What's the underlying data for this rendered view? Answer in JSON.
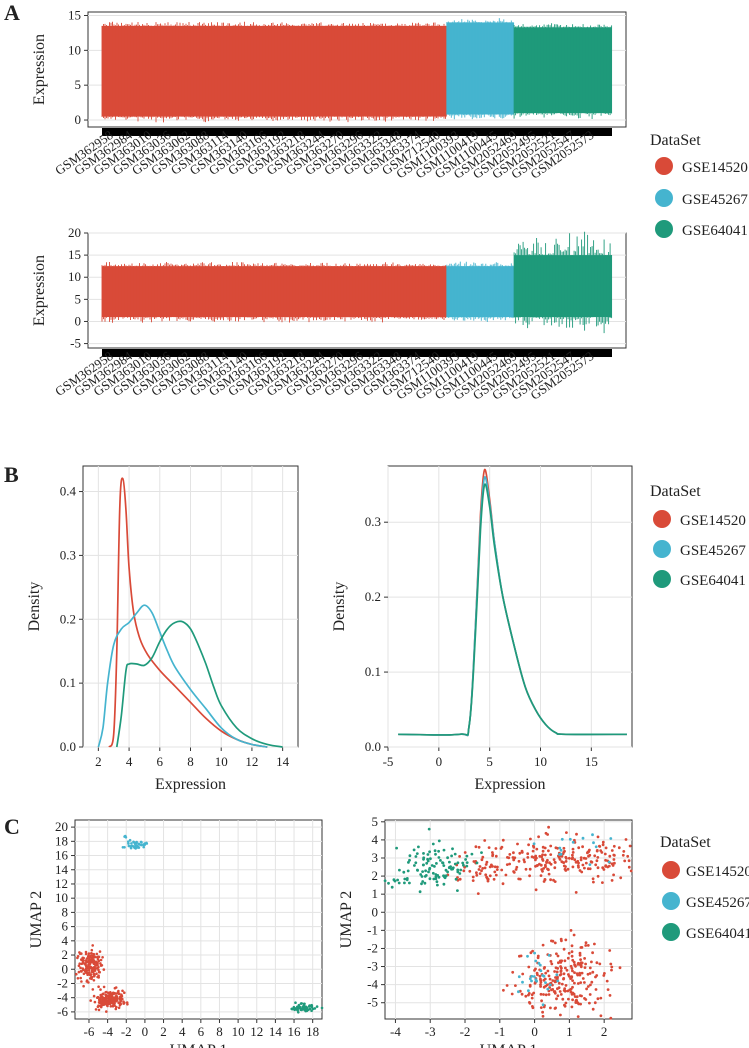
{
  "panels": {
    "a": "A",
    "b": "B",
    "c": "C"
  },
  "legend": {
    "title": "DataSet",
    "items": [
      {
        "label": "GSE14520",
        "color": "#d94a38"
      },
      {
        "label": "GSE45267",
        "color": "#45b4cf"
      },
      {
        "label": "GSE64041",
        "color": "#1f9a7b"
      }
    ]
  },
  "chart_data": [
    {
      "id": "a1",
      "type": "box",
      "title": "",
      "xlabel": "",
      "ylabel": "Expression",
      "ylim": [
        -1,
        15.5
      ],
      "yticks": [
        0,
        5,
        10,
        15
      ],
      "categories": [
        "GSM362958",
        "GSM362984",
        "GSM363010",
        "GSM363036",
        "GSM363062",
        "GSM363088",
        "GSM363114",
        "GSM363140",
        "GSM363166",
        "GSM363192",
        "GSM363218",
        "GSM363244",
        "GSM363270",
        "GSM363296",
        "GSM363322",
        "GSM363348",
        "GSM363374",
        "GSM712540",
        "GSM1100393",
        "GSM1100419",
        "GSM1100445",
        "GSM2052469",
        "GSM2052495",
        "GSM2052521",
        "GSM2052547",
        "GSM2052573"
      ],
      "series": [
        {
          "name": "GSE14520",
          "samples": 445,
          "low": 0.5,
          "high": 13.5
        },
        {
          "name": "GSE45267",
          "samples": 87,
          "low": 0.8,
          "high": 14.0
        },
        {
          "name": "GSE64041",
          "samples": 125,
          "low": 1.0,
          "high": 13.3
        }
      ]
    },
    {
      "id": "a2",
      "type": "box",
      "title": "",
      "xlabel": "",
      "ylabel": "Expression",
      "ylim": [
        -6,
        20
      ],
      "yticks": [
        -5,
        0,
        5,
        10,
        15,
        20
      ],
      "categories": [
        "GSM362958",
        "GSM362984",
        "GSM363010",
        "GSM363036",
        "GSM363062",
        "GSM363088",
        "GSM363114",
        "GSM363140",
        "GSM363166",
        "GSM363192",
        "GSM363218",
        "GSM363244",
        "GSM363270",
        "GSM363296",
        "GSM363322",
        "GSM363348",
        "GSM363374",
        "GSM712540",
        "GSM1100393",
        "GSM1100419",
        "GSM1100445",
        "GSM2052469",
        "GSM2052495",
        "GSM2052521",
        "GSM2052547",
        "GSM2052573"
      ],
      "series": [
        {
          "name": "GSE14520",
          "low": 1.0,
          "high": 12.5
        },
        {
          "name": "GSE45267",
          "low": 1.0,
          "high": 12.5
        },
        {
          "name": "GSE64041",
          "low": 1.0,
          "high": 15.0
        }
      ]
    },
    {
      "id": "b1",
      "type": "line",
      "title": "",
      "xlabel": "Expression",
      "ylabel": "Density",
      "xlim": [
        1,
        15
      ],
      "ylim": [
        0,
        0.44
      ],
      "xticks": [
        2,
        4,
        6,
        8,
        10,
        12,
        14
      ],
      "yticks": [
        0.0,
        0.1,
        0.2,
        0.3,
        0.4
      ],
      "series": [
        {
          "name": "GSE14520",
          "x": [
            2.7,
            3.0,
            3.2,
            3.4,
            3.6,
            3.8,
            4.0,
            4.3,
            4.7,
            5.2,
            6.0,
            7.0,
            8.0,
            9.0,
            10.0,
            11.0,
            12.0,
            13.0
          ],
          "y": [
            0,
            0.02,
            0.15,
            0.38,
            0.42,
            0.37,
            0.28,
            0.21,
            0.17,
            0.145,
            0.12,
            0.095,
            0.07,
            0.045,
            0.025,
            0.012,
            0.004,
            0
          ]
        },
        {
          "name": "GSE45267",
          "x": [
            2.0,
            2.3,
            2.6,
            3.0,
            3.5,
            4.0,
            4.5,
            5.0,
            5.5,
            6.0,
            6.5,
            7.0,
            8.0,
            9.0,
            10.0,
            11.0,
            12.0,
            13.0
          ],
          "y": [
            0,
            0.03,
            0.1,
            0.16,
            0.185,
            0.195,
            0.21,
            0.222,
            0.21,
            0.18,
            0.15,
            0.125,
            0.09,
            0.06,
            0.03,
            0.012,
            0.004,
            0
          ]
        },
        {
          "name": "GSE64041",
          "x": [
            3.2,
            3.5,
            3.8,
            4.0,
            4.5,
            5.0,
            5.5,
            6.0,
            6.5,
            7.0,
            7.5,
            8.0,
            8.5,
            9.0,
            9.5,
            10.0,
            11.0,
            12.0,
            13.0,
            14.0
          ],
          "y": [
            0,
            0.05,
            0.12,
            0.13,
            0.13,
            0.128,
            0.14,
            0.165,
            0.185,
            0.195,
            0.196,
            0.185,
            0.16,
            0.13,
            0.095,
            0.065,
            0.03,
            0.013,
            0.004,
            0
          ]
        }
      ]
    },
    {
      "id": "b2",
      "type": "line",
      "title": "",
      "xlabel": "Expression",
      "ylabel": "Density",
      "xlim": [
        -5,
        19
      ],
      "ylim": [
        0,
        0.375
      ],
      "xticks": [
        -5,
        0,
        5,
        10,
        15
      ],
      "yticks": [
        0.0,
        0.1,
        0.2,
        0.3
      ],
      "series": [
        {
          "name": "GSE14520",
          "x": [
            -4,
            2,
            3,
            3.6,
            4.1,
            4.5,
            5.0,
            5.5,
            6.3,
            7.5,
            8.5,
            9.5,
            10.5,
            11.5,
            12.5,
            18.5
          ],
          "y": [
            0.017,
            0.017,
            0.03,
            0.16,
            0.31,
            0.37,
            0.33,
            0.27,
            0.2,
            0.13,
            0.08,
            0.05,
            0.03,
            0.019,
            0.017,
            0.017
          ]
        },
        {
          "name": "GSE45267",
          "x": [
            -4,
            2,
            3,
            3.6,
            4.1,
            4.5,
            5.0,
            5.5,
            6.3,
            7.5,
            8.5,
            9.5,
            10.5,
            11.5,
            12.5,
            18.5
          ],
          "y": [
            0.017,
            0.017,
            0.03,
            0.16,
            0.3,
            0.36,
            0.325,
            0.27,
            0.2,
            0.13,
            0.08,
            0.05,
            0.03,
            0.019,
            0.017,
            0.017
          ]
        },
        {
          "name": "GSE64041",
          "x": [
            -4,
            2,
            3,
            3.6,
            4.1,
            4.5,
            5.0,
            5.5,
            6.3,
            7.5,
            8.5,
            9.5,
            10.5,
            11.5,
            12.5,
            18.5
          ],
          "y": [
            0.017,
            0.017,
            0.03,
            0.15,
            0.29,
            0.35,
            0.32,
            0.265,
            0.2,
            0.13,
            0.08,
            0.05,
            0.03,
            0.019,
            0.017,
            0.017
          ]
        }
      ]
    },
    {
      "id": "c1",
      "type": "scatter",
      "title": "",
      "xlabel": "UMAP 1",
      "ylabel": "UMAP 2",
      "xlim": [
        -7.5,
        19
      ],
      "ylim": [
        -7,
        21
      ],
      "xticks": [
        -6,
        -4,
        -2,
        0,
        2,
        4,
        6,
        8,
        10,
        12,
        14,
        16,
        18
      ],
      "yticks": [
        -6,
        -4,
        -2,
        0,
        2,
        4,
        6,
        8,
        10,
        12,
        14,
        16,
        18,
        20
      ],
      "series": [
        {
          "name": "GSE14520",
          "clusters": [
            {
              "cx": -5.9,
              "cy": 0.5,
              "sx": 0.6,
              "sy": 1.1,
              "n": 160
            },
            {
              "cx": -3.8,
              "cy": -4.3,
              "sx": 0.9,
              "sy": 0.6,
              "n": 180
            }
          ]
        },
        {
          "name": "GSE45267",
          "clusters": [
            {
              "cx": -0.9,
              "cy": 17.5,
              "sx": 0.5,
              "sy": 0.3,
              "n": 40
            },
            {
              "cx": -2.0,
              "cy": 18.6,
              "sx": 0.1,
              "sy": 0.1,
              "n": 3
            }
          ]
        },
        {
          "name": "GSE64041",
          "clusters": [
            {
              "cx": 17.1,
              "cy": -5.4,
              "sx": 0.7,
              "sy": 0.3,
              "n": 55
            }
          ]
        }
      ]
    },
    {
      "id": "c2",
      "type": "scatter",
      "title": "",
      "xlabel": "UMAP 1",
      "ylabel": "UMAP 2",
      "xlim": [
        -4.3,
        2.8
      ],
      "ylim": [
        -5.9,
        5.1
      ],
      "xticks": [
        -4,
        -3,
        -2,
        -1,
        0,
        1,
        2
      ],
      "yticks": [
        -5,
        -4,
        -3,
        -2,
        -1,
        0,
        1,
        2,
        3,
        4,
        5
      ],
      "series": [
        {
          "name": "GSE14520",
          "clusters": [
            {
              "cx": 0.8,
              "cy": 3.0,
              "sx": 1.2,
              "sy": 0.6,
              "n": 230
            },
            {
              "cx": 0.9,
              "cy": -3.7,
              "sx": 0.7,
              "sy": 1.0,
              "n": 250
            },
            {
              "cx": -1.3,
              "cy": 2.2,
              "sx": 0.6,
              "sy": 0.4,
              "n": 40
            }
          ]
        },
        {
          "name": "GSE45267",
          "clusters": [
            {
              "cx": 0.1,
              "cy": -3.6,
              "sx": 0.3,
              "sy": 0.7,
              "n": 25
            },
            {
              "cx": 1.3,
              "cy": 3.5,
              "sx": 0.5,
              "sy": 0.4,
              "n": 15
            }
          ]
        },
        {
          "name": "GSE64041",
          "clusters": [
            {
              "cx": -2.8,
              "cy": 2.6,
              "sx": 0.5,
              "sy": 0.6,
              "n": 100
            },
            {
              "cx": -3.7,
              "cy": 1.7,
              "sx": 0.3,
              "sy": 0.15,
              "n": 12
            }
          ]
        }
      ]
    }
  ]
}
